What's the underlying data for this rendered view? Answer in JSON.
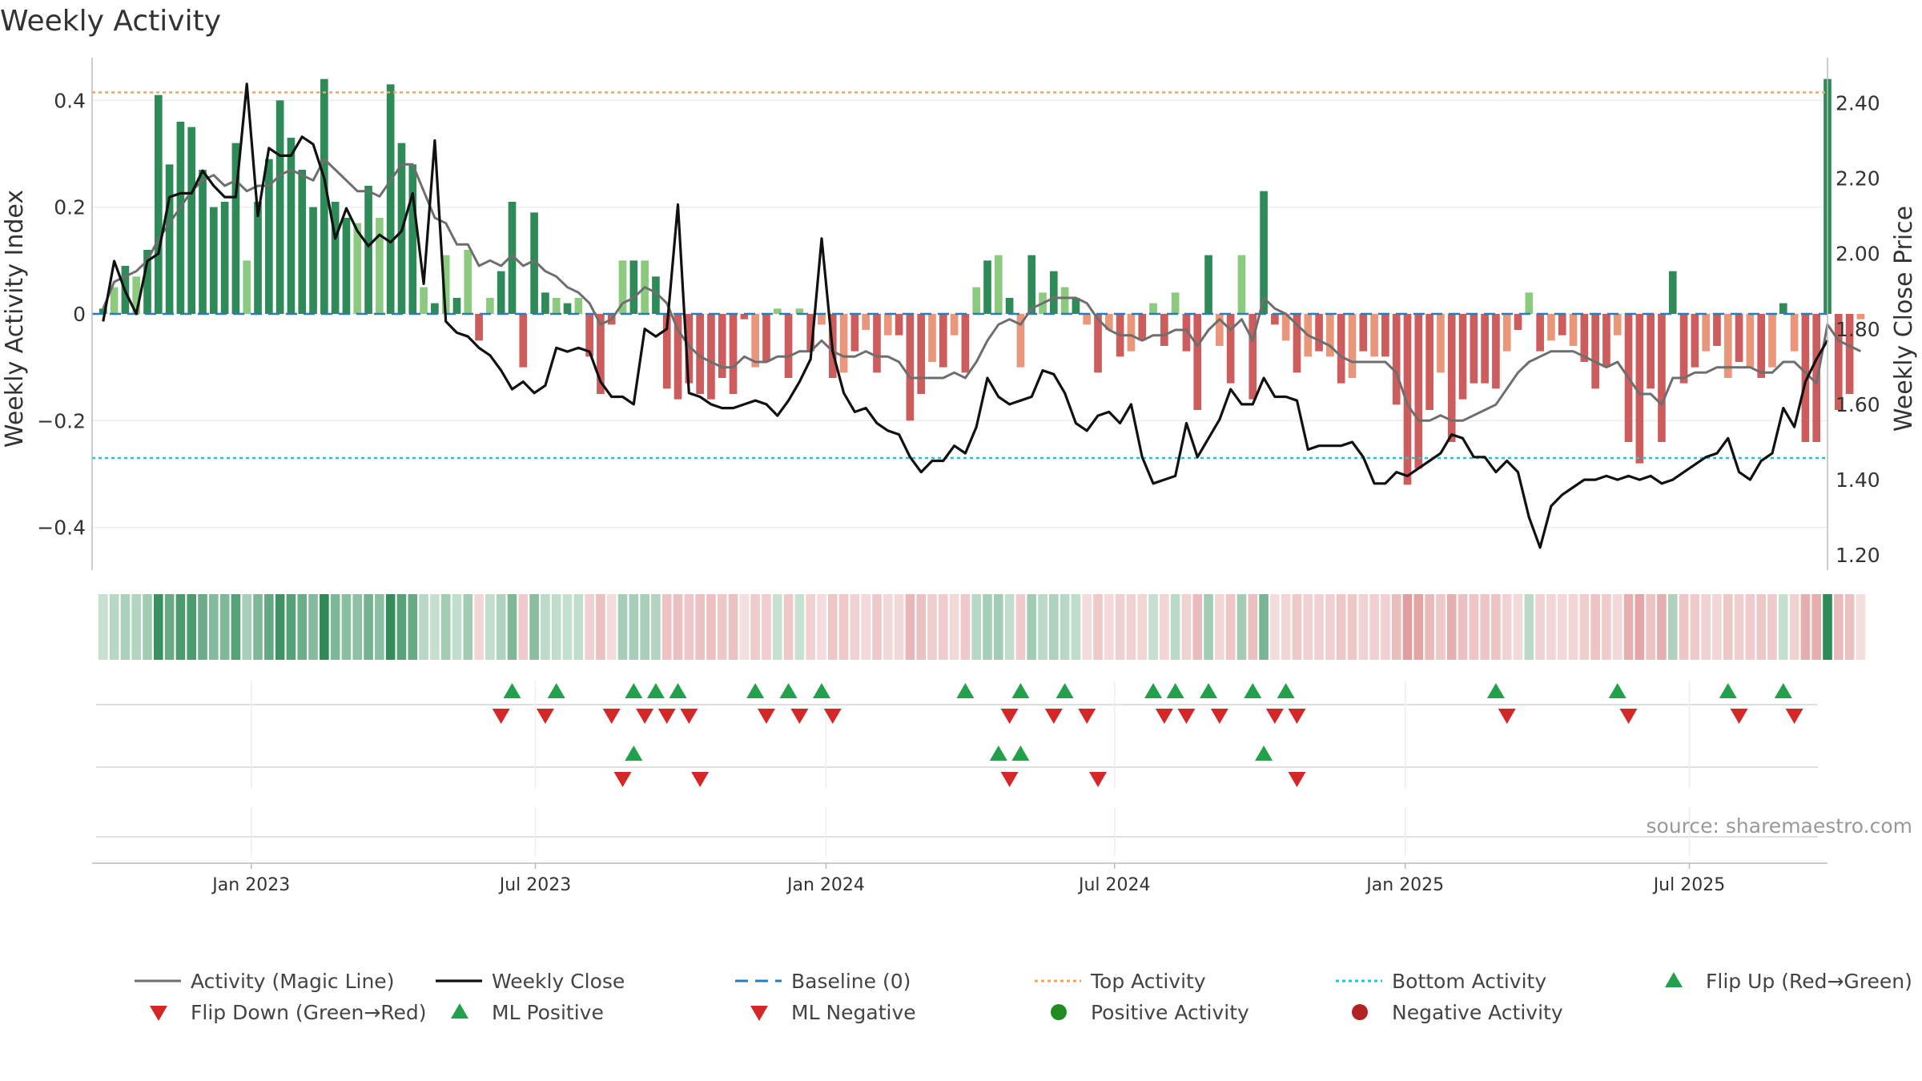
{
  "chart_data": {
    "type": "bar",
    "title": "Weekly Activity",
    "ylabel": "Weekly Activity Index",
    "y2label": "Weekly Close Price",
    "ylim": [
      -0.48,
      0.48
    ],
    "y2lim": [
      1.16,
      2.52
    ],
    "yticks": [
      0.4,
      0.2,
      0,
      -0.2,
      -0.4
    ],
    "yticklabels": [
      "0.4",
      "0.2",
      "0",
      "−0.2",
      "−0.4"
    ],
    "y2ticks": [
      2.4,
      2.2,
      2.0,
      1.8,
      1.6,
      1.4,
      1.2
    ],
    "y2ticklabels": [
      "2.40",
      "2.20",
      "2.00",
      "1.80",
      "1.60",
      "1.40",
      "1.20"
    ],
    "xlim": [
      -1,
      156
    ],
    "xticks": [
      13.4,
      39.1,
      65.4,
      91.5,
      117.8,
      143.5
    ],
    "xticklabels": [
      "Jan 2023",
      "Jul 2023",
      "Jan 2024",
      "Jul 2024",
      "Jan 2025",
      "Jul 2025"
    ],
    "top_activity": 0.415,
    "bottom_activity": -0.27,
    "baseline": 0,
    "weeks": 156,
    "activity": [
      0.01,
      0.05,
      0.09,
      0.07,
      0.12,
      0.41,
      0.28,
      0.36,
      0.35,
      0.27,
      0.2,
      0.21,
      0.32,
      0.1,
      0.21,
      0.29,
      0.4,
      0.33,
      0.27,
      0.2,
      0.44,
      0.21,
      0.18,
      0.17,
      0.24,
      0.18,
      0.43,
      0.32,
      0.28,
      0.05,
      0.02,
      0.11,
      0.03,
      0.12,
      -0.05,
      0.03,
      0.08,
      0.21,
      -0.1,
      0.19,
      0.04,
      0.03,
      0.02,
      0.03,
      -0.08,
      -0.15,
      -0.02,
      0.1,
      0.1,
      0.1,
      0.07,
      -0.14,
      -0.16,
      -0.13,
      -0.15,
      -0.16,
      -0.12,
      -0.15,
      -0.01,
      -0.1,
      -0.09,
      0.01,
      -0.12,
      0.01,
      -0.07,
      -0.02,
      -0.12,
      -0.11,
      -0.07,
      -0.03,
      -0.11,
      -0.04,
      -0.04,
      -0.2,
      -0.15,
      -0.09,
      -0.1,
      -0.04,
      -0.11,
      0.05,
      0.1,
      0.11,
      0.03,
      -0.1,
      0.11,
      0.04,
      0.08,
      0.05,
      0.03,
      -0.02,
      -0.11,
      -0.03,
      -0.08,
      -0.07,
      -0.05,
      0.02,
      -0.06,
      0.04,
      -0.07,
      -0.18,
      0.11,
      -0.06,
      -0.13,
      0.11,
      -0.16,
      0.23,
      -0.02,
      -0.05,
      -0.11,
      -0.08,
      -0.07,
      -0.08,
      -0.13,
      -0.12,
      -0.07,
      -0.08,
      -0.08,
      -0.17,
      -0.32,
      -0.29,
      -0.18,
      -0.11,
      -0.24,
      -0.16,
      -0.13,
      -0.13,
      -0.14,
      -0.07,
      -0.03,
      0.04,
      -0.07,
      -0.05,
      -0.04,
      -0.06,
      -0.09,
      -0.14,
      -0.1,
      -0.04,
      -0.24,
      -0.28,
      -0.14,
      -0.24,
      0.08,
      -0.13,
      -0.1,
      -0.07,
      -0.06,
      -0.12,
      -0.09,
      -0.1,
      -0.12,
      -0.1,
      0.02,
      -0.07,
      -0.24,
      -0.24,
      0.44,
      -0.18,
      -0.15,
      -0.01
    ],
    "magic_line": [
      0.01,
      0.06,
      0.07,
      0.08,
      0.1,
      0.14,
      0.17,
      0.2,
      0.23,
      0.25,
      0.26,
      0.24,
      0.25,
      0.23,
      0.24,
      0.24,
      0.26,
      0.27,
      0.26,
      0.25,
      0.29,
      0.27,
      0.25,
      0.23,
      0.23,
      0.22,
      0.25,
      0.28,
      0.28,
      0.23,
      0.18,
      0.17,
      0.13,
      0.13,
      0.09,
      0.1,
      0.09,
      0.11,
      0.09,
      0.1,
      0.08,
      0.07,
      0.05,
      0.04,
      0.02,
      -0.02,
      -0.01,
      0.02,
      0.03,
      0.05,
      0.04,
      0.02,
      -0.03,
      -0.06,
      -0.08,
      -0.09,
      -0.1,
      -0.1,
      -0.08,
      -0.09,
      -0.09,
      -0.08,
      -0.08,
      -0.07,
      -0.07,
      -0.05,
      -0.07,
      -0.08,
      -0.08,
      -0.07,
      -0.08,
      -0.08,
      -0.09,
      -0.12,
      -0.12,
      -0.12,
      -0.12,
      -0.11,
      -0.12,
      -0.09,
      -0.05,
      -0.02,
      -0.01,
      -0.02,
      0.01,
      0.02,
      0.03,
      0.03,
      0.03,
      0.02,
      -0.01,
      -0.03,
      -0.04,
      -0.04,
      -0.05,
      -0.04,
      -0.04,
      -0.03,
      -0.03,
      -0.06,
      -0.03,
      -0.01,
      -0.03,
      -0.01,
      -0.05,
      0.03,
      0.01,
      0.0,
      -0.02,
      -0.04,
      -0.05,
      -0.06,
      -0.08,
      -0.09,
      -0.09,
      -0.09,
      -0.09,
      -0.11,
      -0.17,
      -0.2,
      -0.2,
      -0.19,
      -0.2,
      -0.2,
      -0.19,
      -0.18,
      -0.17,
      -0.14,
      -0.11,
      -0.09,
      -0.08,
      -0.07,
      -0.07,
      -0.07,
      -0.08,
      -0.09,
      -0.1,
      -0.09,
      -0.12,
      -0.15,
      -0.15,
      -0.17,
      -0.12,
      -0.12,
      -0.11,
      -0.11,
      -0.1,
      -0.1,
      -0.1,
      -0.1,
      -0.11,
      -0.11,
      -0.09,
      -0.09,
      -0.11,
      -0.13,
      -0.02,
      -0.05,
      -0.06,
      -0.07
    ],
    "close": [
      1.82,
      1.98,
      1.9,
      1.84,
      1.98,
      2.0,
      2.15,
      2.16,
      2.16,
      2.22,
      2.18,
      2.15,
      2.15,
      2.45,
      2.1,
      2.28,
      2.26,
      2.26,
      2.31,
      2.29,
      2.2,
      2.04,
      2.12,
      2.06,
      2.02,
      2.05,
      2.03,
      2.06,
      2.16,
      1.92,
      2.3,
      1.82,
      1.79,
      1.78,
      1.75,
      1.73,
      1.69,
      1.64,
      1.66,
      1.63,
      1.65,
      1.75,
      1.74,
      1.75,
      1.74,
      1.66,
      1.62,
      1.62,
      1.6,
      1.8,
      1.78,
      1.8,
      2.13,
      1.63,
      1.62,
      1.6,
      1.59,
      1.59,
      1.6,
      1.61,
      1.6,
      1.57,
      1.61,
      1.66,
      1.72,
      2.04,
      1.74,
      1.63,
      1.58,
      1.59,
      1.55,
      1.53,
      1.52,
      1.46,
      1.42,
      1.45,
      1.45,
      1.49,
      1.47,
      1.54,
      1.67,
      1.62,
      1.6,
      1.61,
      1.62,
      1.69,
      1.68,
      1.63,
      1.55,
      1.53,
      1.57,
      1.58,
      1.55,
      1.6,
      1.46,
      1.39,
      1.4,
      1.41,
      1.55,
      1.46,
      1.51,
      1.56,
      1.64,
      1.6,
      1.6,
      1.67,
      1.62,
      1.62,
      1.61,
      1.48,
      1.49,
      1.49,
      1.49,
      1.5,
      1.46,
      1.39,
      1.39,
      1.42,
      1.41,
      1.43,
      1.45,
      1.47,
      1.52,
      1.51,
      1.46,
      1.46,
      1.42,
      1.45,
      1.42,
      1.3,
      1.22,
      1.33,
      1.36,
      1.38,
      1.4,
      1.4,
      1.41,
      1.4,
      1.41,
      1.4,
      1.41,
      1.39,
      1.4,
      1.42,
      1.44,
      1.46,
      1.47,
      1.51,
      1.42,
      1.4,
      1.45,
      1.47,
      1.59,
      1.54,
      1.66,
      1.72,
      1.77
    ],
    "flip_up": [
      37,
      41,
      48,
      50,
      52,
      59,
      62,
      65,
      78,
      83,
      87,
      95,
      97,
      100,
      104,
      107,
      126,
      137,
      147,
      152
    ],
    "flip_down": [
      36,
      40,
      46,
      49,
      51,
      53,
      60,
      63,
      66,
      82,
      86,
      89,
      96,
      98,
      101,
      106,
      108,
      127,
      138,
      148,
      153
    ],
    "ml_positive": [
      48,
      81,
      83,
      105
    ],
    "ml_negative": [
      47,
      54,
      82,
      90,
      108
    ]
  },
  "source": "source: sharemaestro.com",
  "colors": {
    "green_strong": "#2e8b57",
    "green_light": "#8ccb7f",
    "red_strong": "#cd5c5c",
    "red_light": "#e9967a",
    "magic_line": "#6e6e6e",
    "close_line": "#111111",
    "baseline": "#2b7bba",
    "top_activity": "#f4a460",
    "bottom_activity": "#20c5d8",
    "marker_up": "#22a04b",
    "marker_down": "#d62728",
    "positive_dot": "#228b22",
    "negative_dot": "#b22222"
  },
  "legend": [
    {
      "label": "Activity (Magic Line)",
      "icon": "solid-gray-line"
    },
    {
      "label": "Weekly Close",
      "icon": "solid-black-line"
    },
    {
      "label": "Baseline (0)",
      "icon": "dashed-blue-line"
    },
    {
      "label": "Top Activity",
      "icon": "dotted-orange-line"
    },
    {
      "label": "Bottom Activity",
      "icon": "dotted-cyan-line"
    },
    {
      "label": "Flip Up (Red→Green)",
      "icon": "green-triangle-up"
    },
    {
      "label": "Flip Down (Green→Red)",
      "icon": "red-triangle-down"
    },
    {
      "label": "ML Positive",
      "icon": "green-triangle-up"
    },
    {
      "label": "ML Negative",
      "icon": "red-triangle-down"
    },
    {
      "label": "Positive Activity",
      "icon": "green-dot"
    },
    {
      "label": "Negative Activity",
      "icon": "red-dot"
    }
  ]
}
